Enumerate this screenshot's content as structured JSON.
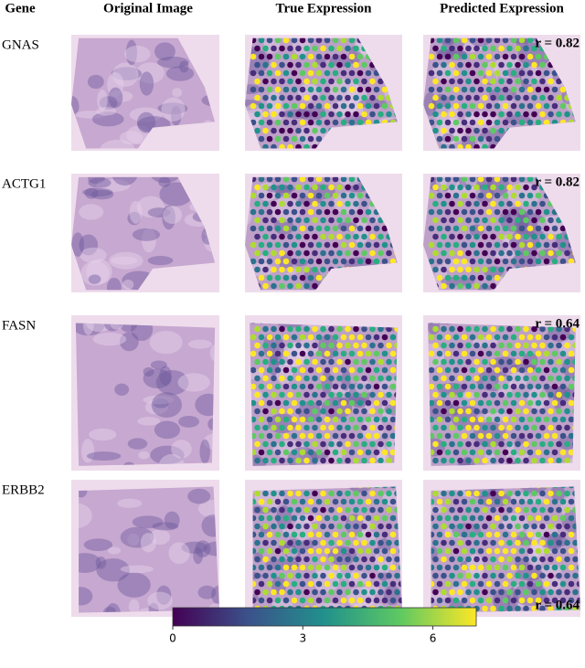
{
  "headers": [
    "Gene",
    "Original Image",
    "True Expression",
    "Predicted Expression"
  ],
  "rows": [
    {
      "gene": "GNAS",
      "r": "r = 0.82"
    },
    {
      "gene": "ACTG1",
      "r": "r = 0.82"
    },
    {
      "gene": "FASN",
      "r": "r = 0.64"
    },
    {
      "gene": "ERBB2",
      "r": "r = 0.64"
    }
  ],
  "colorbar": {
    "lim": [
      0,
      7
    ],
    "ticks": [
      0,
      3,
      6
    ]
  }
}
